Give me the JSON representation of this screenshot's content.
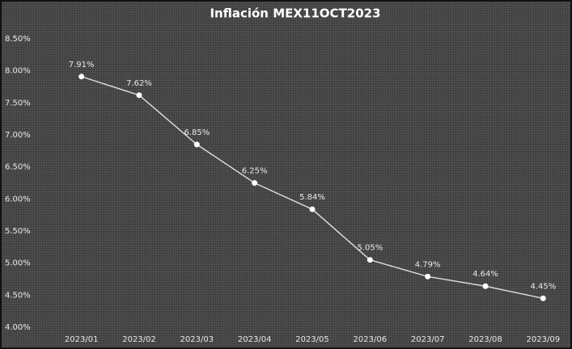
{
  "chart_data": {
    "type": "line",
    "title": "Inflación MEX11OCT2023",
    "categories": [
      "2023/01",
      "2023/02",
      "2023/03",
      "2023/04",
      "2023/05",
      "2023/06",
      "2023/07",
      "2023/08",
      "2023/09"
    ],
    "values": [
      7.91,
      7.62,
      6.85,
      6.25,
      5.84,
      5.05,
      4.79,
      4.64,
      4.45
    ],
    "value_labels": [
      "7.91%",
      "7.62%",
      "6.85%",
      "6.25%",
      "5.84%",
      "5.05%",
      "4.79%",
      "4.64%",
      "4.45%"
    ],
    "color": "#d9d9d9",
    "ylim": [
      4,
      8.5
    ],
    "yticks": [
      {
        "value": 4,
        "label": "4.00%"
      },
      {
        "value": 4.5,
        "label": "4.50%"
      },
      {
        "value": 5,
        "label": "5.00%"
      },
      {
        "value": 5.5,
        "label": "5.50%"
      },
      {
        "value": 6,
        "label": "6.00%"
      },
      {
        "value": 6.5,
        "label": "6.50%"
      },
      {
        "value": 7,
        "label": "7.00%"
      },
      {
        "value": 7.5,
        "label": "7.50%"
      },
      {
        "value": 8,
        "label": "8.00%"
      },
      {
        "value": 8.5,
        "label": "8.50%"
      }
    ],
    "grid": false
  }
}
